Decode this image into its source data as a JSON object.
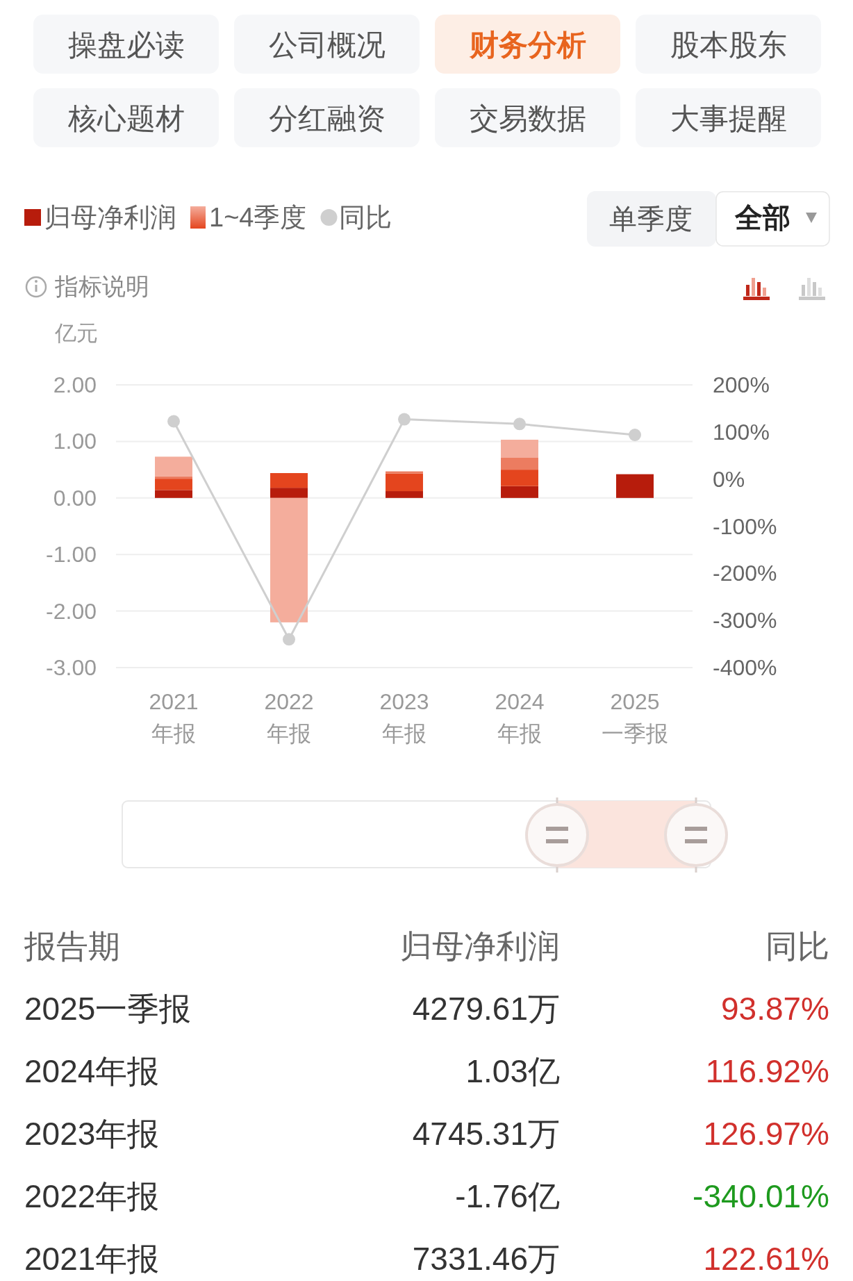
{
  "chart_data": {
    "type": "bar",
    "stacked": true,
    "annotations": [
      "操盘必读",
      "公司概况",
      "财务分析",
      "股本股东",
      "核心题材",
      "分红融资",
      "交易数据",
      "大事提醒",
      "单季度",
      "全部",
      "指标说明",
      "报告期",
      "归母净利润",
      "同比",
      "2025一季报",
      "4279.61万",
      "93.87%",
      "2024年报",
      "1.03亿",
      "116.92%",
      "2023年报",
      "4745.31万",
      "126.97%",
      "2022年报",
      "-1.76亿",
      "-340.01%",
      "2021年报",
      "7331.46万",
      "122.61%"
    ],
    "ylabel": "亿元",
    "categories": [
      "2021\n年报",
      "2022\n年报",
      "2023\n年报",
      "2024\n年报",
      "2025\n一季报"
    ],
    "series": [
      {
        "name": "归母净利润",
        "color": "#b71c0c",
        "values": [
          0.14,
          0.18,
          0.12,
          0.21,
          0.42
        ]
      },
      {
        "name": "1~4季度",
        "color": "#e4451e",
        "values": [
          0.2,
          0.26,
          0.31,
          0.29,
          null
        ]
      },
      {
        "color": "#ec7c60",
        "values": [
          0.04,
          null,
          0.04,
          0.21,
          null
        ]
      },
      {
        "color": "#f4ad9c",
        "values": [
          0.35,
          -2.2,
          null,
          0.32,
          null
        ]
      },
      {
        "name": "同比",
        "type": "line",
        "axis": "y2",
        "color": "#cfcfcf",
        "values": [
          122.61,
          -340.01,
          126.97,
          116.92,
          93.87
        ]
      }
    ],
    "ylim": [
      -3,
      2
    ],
    "yticks": [
      {
        "value": 2,
        "label": "2.00"
      },
      {
        "value": 1,
        "label": "1.00"
      },
      {
        "value": 0,
        "label": "0.00"
      },
      {
        "value": -1,
        "label": "-1.00"
      },
      {
        "value": -2,
        "label": "-2.00"
      },
      {
        "value": -3,
        "label": "-3.00"
      }
    ],
    "y2lim": [
      -400,
      200
    ],
    "y2ticks": [
      {
        "value": 200,
        "label": "200%"
      },
      {
        "value": 100,
        "label": "100%"
      },
      {
        "value": 0,
        "label": "0%"
      },
      {
        "value": -100,
        "label": "-100%"
      },
      {
        "value": -200,
        "label": "-200%"
      },
      {
        "value": -300,
        "label": "-300%"
      },
      {
        "value": -400,
        "label": "-400%"
      }
    ],
    "grid": "y",
    "legend": "top left",
    "marker": "circle",
    "line_style": "solid"
  }
}
